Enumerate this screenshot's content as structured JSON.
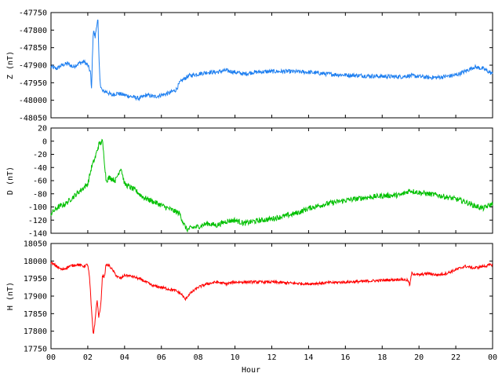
{
  "chart_data": [
    {
      "type": "line",
      "ylabel": "Z (nT)",
      "ylim": [
        -48050,
        -47750
      ],
      "yticks": [
        -47750,
        -47800,
        -47850,
        -47900,
        -47950,
        -48000,
        -48050
      ],
      "color": "#1e7ff0",
      "noise": 6,
      "series": [
        {
          "x": [
            0,
            0.3,
            0.6,
            0.9,
            1.2,
            1.5,
            1.8,
            2.0,
            2.15,
            2.2,
            2.25,
            2.3,
            2.4,
            2.5,
            2.55,
            2.6,
            2.65,
            2.7,
            2.8,
            3.0,
            3.3,
            3.6,
            4.0,
            4.4,
            4.8,
            5.2,
            5.6,
            6.0,
            6.4,
            6.8,
            7.0,
            7.2,
            7.5,
            8.0,
            8.5,
            9.0,
            9.5,
            10.0,
            10.5,
            11.0,
            12.0,
            13.0,
            14.0,
            15.0,
            16.0,
            17.0,
            18.0,
            19.0,
            19.5,
            20.0,
            20.5,
            21.0,
            21.5,
            22.0,
            22.5,
            23.0,
            23.5,
            24.0
          ],
          "y": [
            -47905,
            -47910,
            -47900,
            -47895,
            -47905,
            -47895,
            -47890,
            -47900,
            -47920,
            -47975,
            -47880,
            -47800,
            -47820,
            -47780,
            -47770,
            -47870,
            -47930,
            -47960,
            -47975,
            -47975,
            -47985,
            -47980,
            -47985,
            -47990,
            -47995,
            -47985,
            -47990,
            -47985,
            -47980,
            -47970,
            -47950,
            -47940,
            -47930,
            -47925,
            -47920,
            -47920,
            -47915,
            -47920,
            -47925,
            -47920,
            -47918,
            -47918,
            -47920,
            -47925,
            -47928,
            -47930,
            -47932,
            -47933,
            -47930,
            -47932,
            -47935,
            -47935,
            -47932,
            -47928,
            -47918,
            -47905,
            -47910,
            -47925
          ]
        }
      ]
    },
    {
      "type": "line",
      "ylabel": "D (nT)",
      "ylim": [
        -140,
        20
      ],
      "yticks": [
        20,
        0,
        -20,
        -40,
        -60,
        -80,
        -100,
        -120,
        -140
      ],
      "color": "#00c000",
      "noise": 4,
      "series": [
        {
          "x": [
            0,
            0.4,
            0.8,
            1.2,
            1.6,
            2.0,
            2.2,
            2.4,
            2.6,
            2.8,
            3.0,
            3.2,
            3.5,
            3.8,
            4.0,
            4.3,
            4.6,
            5.0,
            5.4,
            5.8,
            6.2,
            6.6,
            7.0,
            7.2,
            7.4,
            7.6,
            8.0,
            8.5,
            9.0,
            9.5,
            10.0,
            10.5,
            11.0,
            11.5,
            12.0,
            12.5,
            13.0,
            13.5,
            14.0,
            15.0,
            16.0,
            17.0,
            18.0,
            19.0,
            19.5,
            20.0,
            20.5,
            21.0,
            21.5,
            22.0,
            22.5,
            23.0,
            23.5,
            24.0
          ],
          "y": [
            -110,
            -100,
            -95,
            -85,
            -75,
            -65,
            -40,
            -25,
            -5,
            0,
            -60,
            -55,
            -60,
            -40,
            -65,
            -70,
            -75,
            -85,
            -90,
            -95,
            -100,
            -105,
            -110,
            -125,
            -135,
            -132,
            -130,
            -125,
            -128,
            -122,
            -120,
            -125,
            -122,
            -120,
            -118,
            -115,
            -112,
            -108,
            -102,
            -95,
            -90,
            -86,
            -83,
            -82,
            -75,
            -78,
            -80,
            -82,
            -85,
            -88,
            -92,
            -98,
            -102,
            -95
          ]
        }
      ]
    },
    {
      "type": "line",
      "ylabel": "H (nT)",
      "xlabel": "Hour",
      "ylim": [
        17750,
        18050
      ],
      "yticks": [
        18050,
        18000,
        17950,
        17900,
        17850,
        17800,
        17750
      ],
      "color": "#ff0000",
      "noise": 4,
      "series": [
        {
          "x": [
            0,
            0.3,
            0.6,
            1.0,
            1.4,
            1.8,
            2.0,
            2.1,
            2.2,
            2.3,
            2.4,
            2.5,
            2.6,
            2.7,
            2.8,
            2.9,
            3.0,
            3.2,
            3.4,
            3.6,
            3.8,
            4.0,
            4.5,
            5.0,
            5.5,
            6.0,
            6.4,
            6.8,
            7.1,
            7.3,
            7.5,
            8.0,
            8.5,
            9.0,
            9.5,
            10.0,
            11.0,
            12.0,
            13.0,
            14.0,
            15.0,
            16.0,
            17.0,
            18.0,
            19.0,
            19.4,
            19.5,
            19.6,
            20.0,
            20.5,
            21.0,
            21.5,
            22.0,
            22.5,
            23.0,
            23.5,
            24.0
          ],
          "y": [
            17995,
            17985,
            17975,
            17985,
            17990,
            17985,
            17990,
            17950,
            17860,
            17790,
            17830,
            17890,
            17840,
            17870,
            17960,
            17955,
            17990,
            17985,
            17970,
            17955,
            17950,
            17960,
            17955,
            17945,
            17930,
            17925,
            17920,
            17915,
            17905,
            17890,
            17905,
            17925,
            17935,
            17940,
            17935,
            17940,
            17940,
            17940,
            17937,
            17935,
            17938,
            17940,
            17942,
            17945,
            17948,
            17945,
            17930,
            17965,
            17960,
            17965,
            17960,
            17965,
            17975,
            17985,
            17980,
            17985,
            17990
          ]
        }
      ]
    }
  ],
  "x_axis": {
    "range": [
      0,
      24
    ],
    "ticks": [
      "00",
      "02",
      "04",
      "06",
      "08",
      "10",
      "12",
      "14",
      "16",
      "18",
      "20",
      "22",
      "00"
    ],
    "label": "Hour"
  }
}
